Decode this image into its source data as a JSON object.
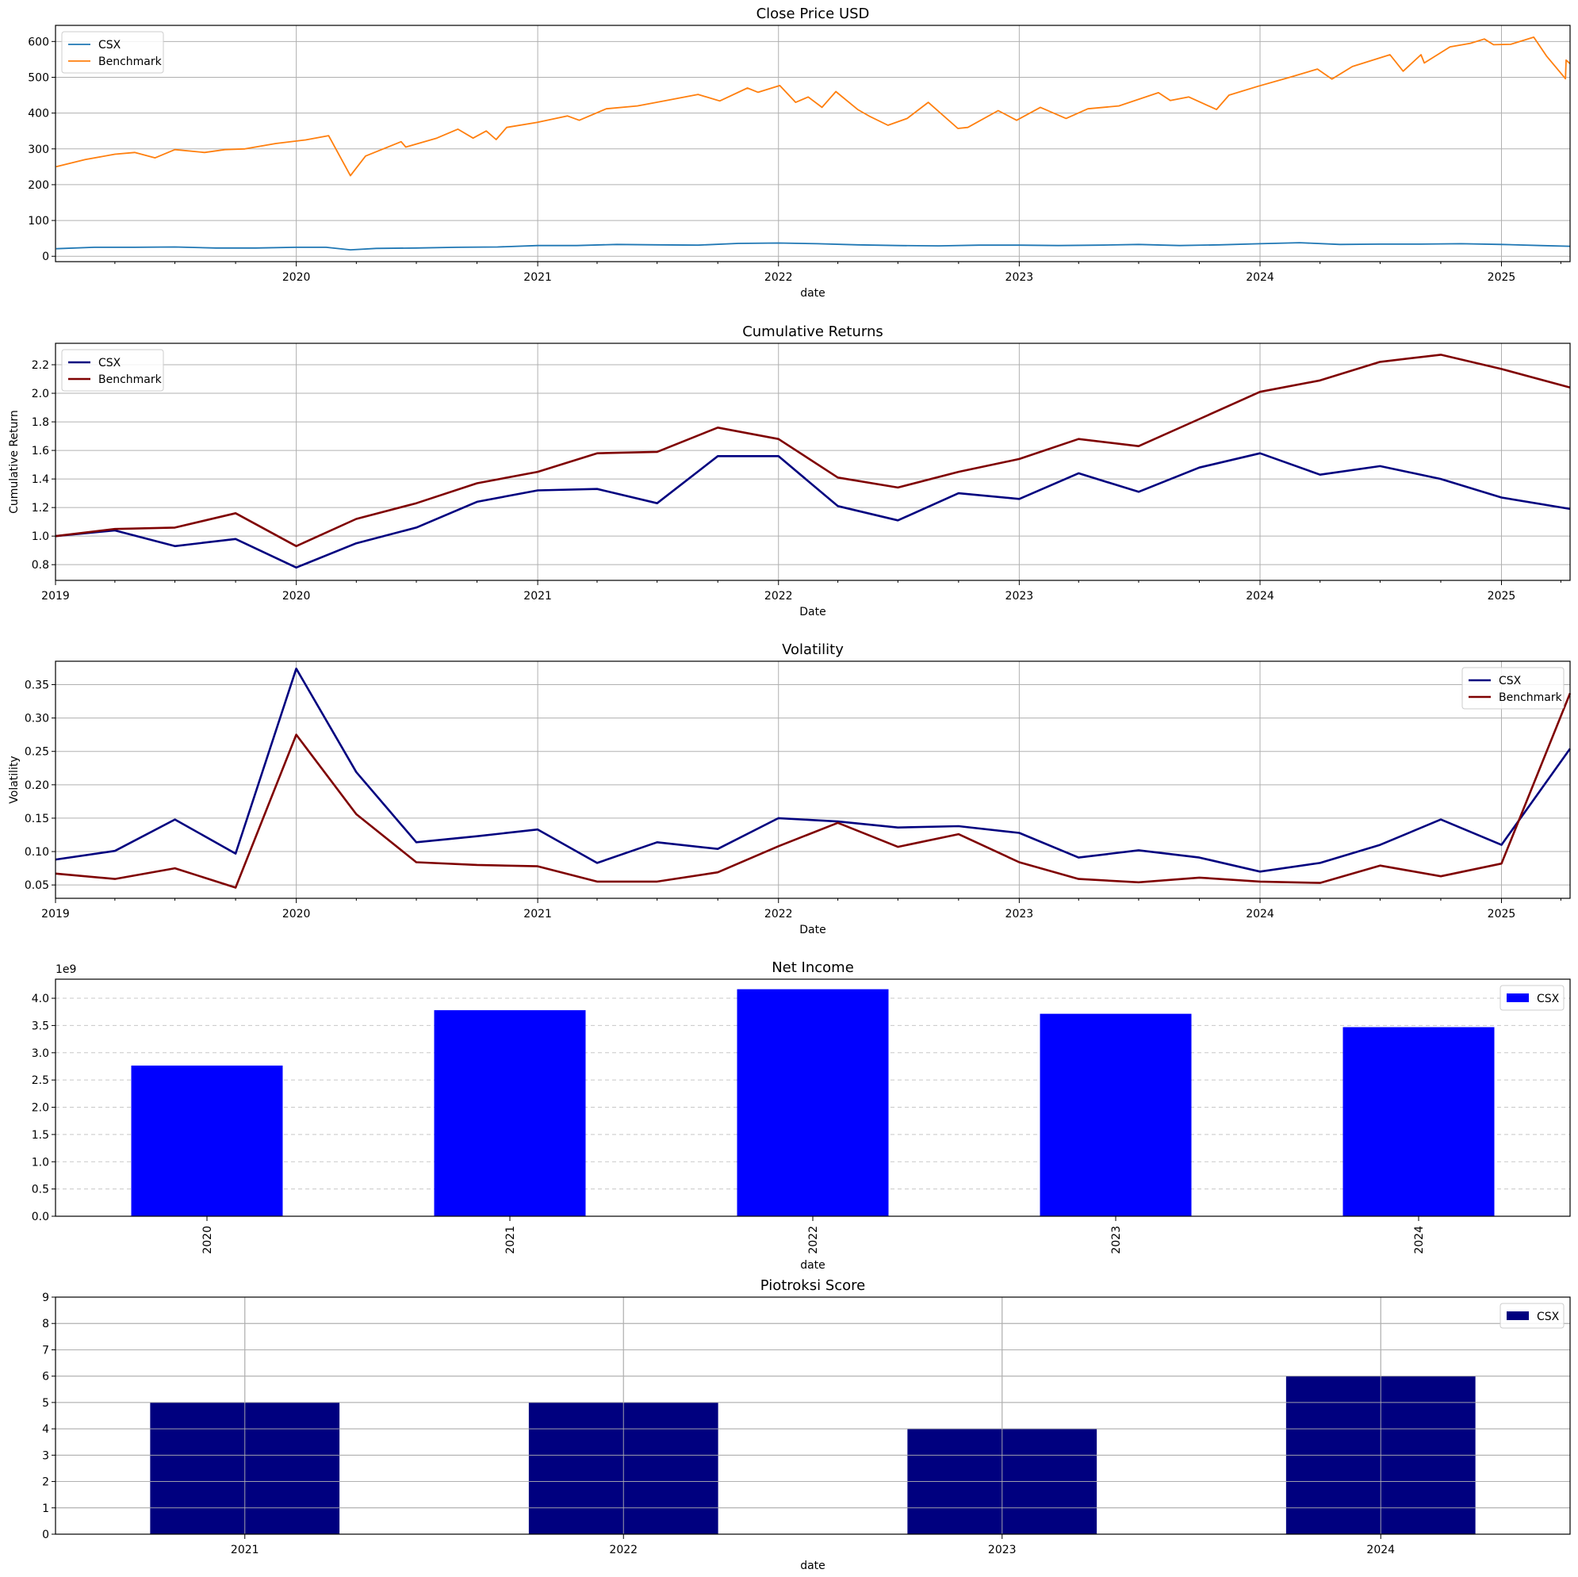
{
  "chart_data": [
    {
      "id": "close-price",
      "type": "line",
      "title": "Close Price USD",
      "xlabel": "date",
      "ylabel": "",
      "x_type": "date",
      "xlim": [
        "2019-01-01",
        "2025-04-15"
      ],
      "ylim": [
        -15,
        645
      ],
      "xticks": [
        "2020",
        "2021",
        "2022",
        "2023",
        "2024",
        "2025"
      ],
      "yticks": [
        "0",
        "100",
        "200",
        "300",
        "400",
        "500",
        "600"
      ],
      "grid": "both",
      "legend": "top-left",
      "series": [
        {
          "name": "CSX",
          "color": "#1f77b4",
          "points": [
            [
              "2019-01-02",
              21
            ],
            [
              "2019-03-01",
              25
            ],
            [
              "2019-05-01",
              25
            ],
            [
              "2019-07-01",
              26
            ],
            [
              "2019-09-01",
              23
            ],
            [
              "2019-11-01",
              23
            ],
            [
              "2020-01-01",
              25
            ],
            [
              "2020-02-15",
              25
            ],
            [
              "2020-03-23",
              18
            ],
            [
              "2020-05-01",
              22
            ],
            [
              "2020-07-01",
              23
            ],
            [
              "2020-09-01",
              25
            ],
            [
              "2020-11-01",
              26
            ],
            [
              "2021-01-01",
              30
            ],
            [
              "2021-03-01",
              30
            ],
            [
              "2021-05-01",
              33
            ],
            [
              "2021-07-01",
              32
            ],
            [
              "2021-09-01",
              31
            ],
            [
              "2021-11-01",
              36
            ],
            [
              "2022-01-01",
              37
            ],
            [
              "2022-03-01",
              35
            ],
            [
              "2022-05-01",
              32
            ],
            [
              "2022-07-01",
              30
            ],
            [
              "2022-09-01",
              29
            ],
            [
              "2022-11-01",
              31
            ],
            [
              "2023-01-01",
              31
            ],
            [
              "2023-03-01",
              30
            ],
            [
              "2023-05-01",
              31
            ],
            [
              "2023-07-01",
              33
            ],
            [
              "2023-09-01",
              30
            ],
            [
              "2023-11-01",
              32
            ],
            [
              "2024-01-01",
              35
            ],
            [
              "2024-03-01",
              38
            ],
            [
              "2024-05-01",
              33
            ],
            [
              "2024-07-01",
              34
            ],
            [
              "2024-09-01",
              34
            ],
            [
              "2024-11-01",
              35
            ],
            [
              "2025-01-01",
              33
            ],
            [
              "2025-03-01",
              30
            ],
            [
              "2025-04-15",
              28
            ]
          ]
        },
        {
          "name": "Benchmark",
          "color": "#ff7f0e",
          "points": [
            [
              "2019-01-02",
              250
            ],
            [
              "2019-02-15",
              270
            ],
            [
              "2019-04-01",
              285
            ],
            [
              "2019-05-01",
              290
            ],
            [
              "2019-06-01",
              275
            ],
            [
              "2019-07-01",
              298
            ],
            [
              "2019-08-15",
              290
            ],
            [
              "2019-09-15",
              298
            ],
            [
              "2019-10-15",
              300
            ],
            [
              "2019-12-01",
              315
            ],
            [
              "2020-01-15",
              325
            ],
            [
              "2020-02-19",
              337
            ],
            [
              "2020-03-23",
              225
            ],
            [
              "2020-04-15",
              280
            ],
            [
              "2020-06-08",
              320
            ],
            [
              "2020-06-15",
              305
            ],
            [
              "2020-08-01",
              330
            ],
            [
              "2020-09-02",
              355
            ],
            [
              "2020-09-25",
              330
            ],
            [
              "2020-10-15",
              350
            ],
            [
              "2020-10-30",
              326
            ],
            [
              "2020-11-15",
              360
            ],
            [
              "2020-12-31",
              374
            ],
            [
              "2021-02-15",
              392
            ],
            [
              "2021-03-05",
              380
            ],
            [
              "2021-04-15",
              412
            ],
            [
              "2021-06-01",
              420
            ],
            [
              "2021-07-15",
              435
            ],
            [
              "2021-09-01",
              452
            ],
            [
              "2021-10-04",
              434
            ],
            [
              "2021-11-15",
              470
            ],
            [
              "2021-12-01",
              458
            ],
            [
              "2022-01-03",
              477
            ],
            [
              "2022-01-27",
              430
            ],
            [
              "2022-02-15",
              445
            ],
            [
              "2022-03-08",
              416
            ],
            [
              "2022-03-29",
              460
            ],
            [
              "2022-05-01",
              410
            ],
            [
              "2022-05-20",
              390
            ],
            [
              "2022-06-16",
              366
            ],
            [
              "2022-07-15",
              385
            ],
            [
              "2022-08-16",
              430
            ],
            [
              "2022-09-30",
              357
            ],
            [
              "2022-10-15",
              360
            ],
            [
              "2022-11-30",
              407
            ],
            [
              "2022-12-28",
              380
            ],
            [
              "2023-02-02",
              416
            ],
            [
              "2023-03-13",
              385
            ],
            [
              "2023-04-15",
              412
            ],
            [
              "2023-06-01",
              420
            ],
            [
              "2023-07-31",
              457
            ],
            [
              "2023-08-18",
              435
            ],
            [
              "2023-09-15",
              445
            ],
            [
              "2023-10-27",
              410
            ],
            [
              "2023-11-15",
              450
            ],
            [
              "2023-12-29",
              475
            ],
            [
              "2024-02-15",
              500
            ],
            [
              "2024-03-28",
              523
            ],
            [
              "2024-04-19",
              495
            ],
            [
              "2024-05-20",
              530
            ],
            [
              "2024-07-16",
              563
            ],
            [
              "2024-08-05",
              517
            ],
            [
              "2024-09-01",
              563
            ],
            [
              "2024-09-06",
              540
            ],
            [
              "2024-10-15",
              585
            ],
            [
              "2024-11-15",
              595
            ],
            [
              "2024-12-06",
              607
            ],
            [
              "2024-12-20",
              591
            ],
            [
              "2025-01-15",
              592
            ],
            [
              "2025-02-19",
              612
            ],
            [
              "2025-03-10",
              560
            ],
            [
              "2025-04-04",
              505
            ],
            [
              "2025-04-08",
              496
            ],
            [
              "2025-04-09",
              548
            ],
            [
              "2025-04-15",
              538
            ]
          ]
        }
      ]
    },
    {
      "id": "cumulative-returns",
      "type": "line",
      "title": "Cumulative Returns",
      "xlabel": "Date",
      "ylabel": "Cumulative Return",
      "x_type": "date",
      "xlim": [
        "2019-01-01",
        "2025-04-15"
      ],
      "ylim": [
        0.69,
        2.35
      ],
      "xticks": [
        "2019",
        "2020",
        "2021",
        "2022",
        "2023",
        "2024",
        "2025"
      ],
      "yticks": [
        "0.8",
        "1.0",
        "1.2",
        "1.4",
        "1.6",
        "1.8",
        "2.0",
        "2.2"
      ],
      "grid": "both",
      "legend": "top-left",
      "dates": [
        "2019-01-01",
        "2019-04-01",
        "2019-07-01",
        "2019-10-01",
        "2020-01-01",
        "2020-04-01",
        "2020-07-01",
        "2020-10-01",
        "2021-01-01",
        "2021-04-01",
        "2021-07-01",
        "2021-10-01",
        "2022-01-01",
        "2022-04-01",
        "2022-07-01",
        "2022-10-01",
        "2023-01-01",
        "2023-04-01",
        "2023-07-01",
        "2023-10-01",
        "2024-01-01",
        "2024-04-01",
        "2024-07-01",
        "2024-10-01",
        "2025-01-01",
        "2025-04-15"
      ],
      "series": [
        {
          "name": "CSX",
          "color": "#00007f",
          "values": [
            1.0,
            1.04,
            0.93,
            0.98,
            0.78,
            0.95,
            1.06,
            1.24,
            1.32,
            1.33,
            1.23,
            1.56,
            1.56,
            1.21,
            1.11,
            1.3,
            1.26,
            1.44,
            1.31,
            1.48,
            1.58,
            1.43,
            1.49,
            1.4,
            1.27,
            1.19
          ]
        },
        {
          "name": "Benchmark",
          "color": "#7f0000",
          "values": [
            1.0,
            1.05,
            1.06,
            1.16,
            0.93,
            1.12,
            1.23,
            1.37,
            1.45,
            1.58,
            1.59,
            1.76,
            1.68,
            1.41,
            1.34,
            1.45,
            1.54,
            1.68,
            1.63,
            1.82,
            2.01,
            2.09,
            2.22,
            2.27,
            2.17,
            2.04
          ]
        }
      ]
    },
    {
      "id": "volatility",
      "type": "line",
      "title": "Volatility",
      "xlabel": "Date",
      "ylabel": "Volatility",
      "x_type": "date",
      "xlim": [
        "2019-01-01",
        "2025-04-15"
      ],
      "ylim": [
        0.03,
        0.385
      ],
      "xticks": [
        "2019",
        "2020",
        "2021",
        "2022",
        "2023",
        "2024",
        "2025"
      ],
      "yticks": [
        "0.05",
        "0.10",
        "0.15",
        "0.20",
        "0.25",
        "0.30",
        "0.35"
      ],
      "grid": "both",
      "legend": "top-right",
      "dates": [
        "2019-01-01",
        "2019-04-01",
        "2019-07-01",
        "2019-10-01",
        "2020-01-01",
        "2020-04-01",
        "2020-07-01",
        "2020-10-01",
        "2021-01-01",
        "2021-04-01",
        "2021-07-01",
        "2021-10-01",
        "2022-01-01",
        "2022-04-01",
        "2022-07-01",
        "2022-10-01",
        "2023-01-01",
        "2023-04-01",
        "2023-07-01",
        "2023-10-01",
        "2024-01-01",
        "2024-04-01",
        "2024-07-01",
        "2024-10-01",
        "2025-01-01",
        "2025-04-15"
      ],
      "series": [
        {
          "name": "CSX",
          "color": "#00007f",
          "values": [
            0.088,
            0.101,
            0.148,
            0.097,
            0.374,
            0.219,
            0.114,
            0.123,
            0.133,
            0.083,
            0.114,
            0.104,
            0.15,
            0.145,
            0.136,
            0.138,
            0.128,
            0.091,
            0.102,
            0.091,
            0.07,
            0.083,
            0.11,
            0.148,
            0.11,
            0.254
          ]
        },
        {
          "name": "Benchmark",
          "color": "#7f0000",
          "values": [
            0.067,
            0.059,
            0.075,
            0.046,
            0.275,
            0.156,
            0.084,
            0.08,
            0.078,
            0.055,
            0.055,
            0.069,
            0.108,
            0.143,
            0.107,
            0.126,
            0.084,
            0.059,
            0.054,
            0.061,
            0.055,
            0.053,
            0.079,
            0.063,
            0.082,
            0.337
          ]
        }
      ]
    },
    {
      "id": "net-income",
      "type": "bar",
      "title": "Net Income",
      "xlabel": "date",
      "ylabel": "",
      "scale_label": "1e9",
      "categories": [
        "2020",
        "2021",
        "2022",
        "2023",
        "2024"
      ],
      "ylim": [
        0,
        4.35
      ],
      "yticks": [
        "0.0",
        "0.5",
        "1.0",
        "1.5",
        "2.0",
        "2.5",
        "3.0",
        "3.5",
        "4.0"
      ],
      "grid": "y-dashed",
      "legend": "top-right",
      "series": [
        {
          "name": "CSX",
          "color": "#0000ff",
          "values": [
            2.765,
            3.781,
            4.166,
            3.715,
            3.47
          ]
        }
      ]
    },
    {
      "id": "piotroski-score",
      "type": "bar",
      "title": "Piotroksi Score",
      "xlabel": "date",
      "ylabel": "",
      "categories": [
        "2021",
        "2022",
        "2023",
        "2024"
      ],
      "ylim": [
        0,
        9
      ],
      "yticks": [
        "0",
        "1",
        "2",
        "3",
        "4",
        "5",
        "6",
        "7",
        "8",
        "9"
      ],
      "grid": "both",
      "legend": "top-right",
      "series": [
        {
          "name": "CSX",
          "color": "#00007f",
          "values": [
            5,
            5,
            4,
            6
          ]
        }
      ]
    }
  ]
}
